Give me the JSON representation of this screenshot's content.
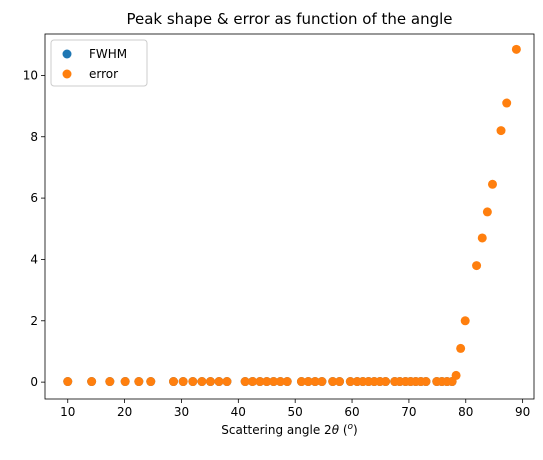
{
  "chart_data": {
    "type": "scatter",
    "title": "Peak shape & error as function of the angle",
    "xlabel_prefix": "Scattering angle 2",
    "xlabel_theta": "θ",
    "xlabel_unit_open": " (",
    "xlabel_unit_sup": "o",
    "xlabel_unit_close": ")",
    "ylabel": "",
    "xlim": [
      6,
      92
    ],
    "ylim": [
      -0.55,
      11.35
    ],
    "xticks": [
      10,
      20,
      30,
      40,
      50,
      60,
      70,
      80,
      90
    ],
    "yticks": [
      0,
      2,
      4,
      6,
      8,
      10
    ],
    "grid": false,
    "legend_position": "top-left",
    "series": [
      {
        "name": "FWHM",
        "color": "#1f77b4",
        "x": [
          10.0,
          14.2,
          17.4,
          20.1,
          22.5,
          24.6,
          28.6,
          30.3,
          32.0,
          33.6,
          35.1,
          36.6,
          38.0,
          41.2,
          42.5,
          43.8,
          45.0,
          46.2,
          47.4,
          48.6,
          51.1,
          52.3,
          53.5,
          54.7,
          56.6,
          57.8,
          59.7,
          60.9,
          61.9,
          62.9,
          63.9,
          64.9,
          65.9,
          67.5,
          68.4,
          69.4,
          70.3,
          71.2,
          72.1,
          73.0,
          74.9,
          75.8,
          76.7,
          77.6
        ],
        "y": [
          0.02,
          0.02,
          0.02,
          0.02,
          0.02,
          0.02,
          0.02,
          0.02,
          0.02,
          0.02,
          0.02,
          0.02,
          0.02,
          0.02,
          0.02,
          0.02,
          0.02,
          0.02,
          0.02,
          0.02,
          0.02,
          0.02,
          0.02,
          0.02,
          0.02,
          0.02,
          0.02,
          0.02,
          0.02,
          0.02,
          0.02,
          0.02,
          0.02,
          0.02,
          0.02,
          0.02,
          0.02,
          0.02,
          0.02,
          0.02,
          0.02,
          0.02,
          0.02,
          0.02
        ]
      },
      {
        "name": "error",
        "color": "#ff7f0e",
        "x": [
          10.0,
          14.2,
          17.4,
          20.1,
          22.5,
          24.6,
          28.6,
          30.3,
          32.0,
          33.6,
          35.1,
          36.6,
          38.0,
          41.2,
          42.5,
          43.8,
          45.0,
          46.2,
          47.4,
          48.6,
          51.1,
          52.3,
          53.5,
          54.7,
          56.6,
          57.8,
          59.7,
          60.9,
          61.9,
          62.9,
          63.9,
          64.9,
          65.9,
          67.5,
          68.4,
          69.4,
          70.3,
          71.2,
          72.1,
          73.0,
          74.9,
          75.8,
          76.7,
          77.6,
          78.3,
          79.1,
          79.9,
          81.9,
          82.9,
          83.8,
          84.7,
          86.2,
          87.2,
          88.9
        ],
        "y": [
          0.02,
          0.02,
          0.02,
          0.02,
          0.02,
          0.02,
          0.02,
          0.02,
          0.02,
          0.02,
          0.02,
          0.02,
          0.02,
          0.02,
          0.02,
          0.02,
          0.02,
          0.02,
          0.02,
          0.02,
          0.02,
          0.02,
          0.02,
          0.02,
          0.02,
          0.02,
          0.02,
          0.02,
          0.02,
          0.02,
          0.02,
          0.02,
          0.02,
          0.02,
          0.02,
          0.02,
          0.02,
          0.02,
          0.02,
          0.02,
          0.02,
          0.02,
          0.02,
          0.02,
          0.22,
          1.1,
          2.0,
          3.8,
          4.7,
          5.55,
          6.45,
          8.2,
          9.1,
          10.85
        ]
      }
    ]
  }
}
